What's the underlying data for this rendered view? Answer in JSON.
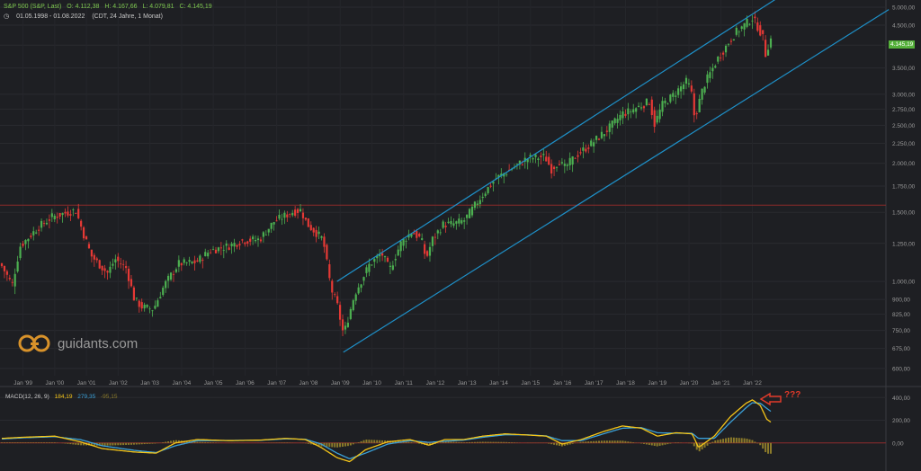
{
  "header": {
    "symbol": "S&P 500 (S&P, Last)",
    "open": "O: 4.112,38",
    "high": "H: 4.167,66",
    "low": "L: 4.079,81",
    "close": "C: 4.145,19",
    "range": "01.05.1998 - 01.08.2022",
    "meta": "(CDT, 24 Jahre, 1 Monat)"
  },
  "last_price_label": "4.145,19",
  "logo_text": "guidants.com",
  "annotation": "???",
  "macd_header": {
    "name": "MACD(12, 26, 9)",
    "macd": "184,19",
    "signal": "279,35",
    "hist": "-95,15"
  },
  "colors": {
    "up": "#4caf50",
    "down": "#e53935",
    "channel": "#1e90c8",
    "macd": "#f5c518",
    "signal": "#3aa0d8",
    "hist": "#8b7a2a",
    "hline": "#8b2a2a",
    "background": "#1e1f23"
  },
  "chart_data": [
    {
      "type": "candlestick",
      "title": "S&P 500 (S&P, Last)",
      "scale": "log",
      "ylim": [
        575,
        5000
      ],
      "y_ticks": [
        "5.000,00",
        "4.500,00",
        "4.000,00",
        "3.500,00",
        "3.000,00",
        "2.750,00",
        "2.500,00",
        "2.250,00",
        "2.000,00",
        "1.750,00",
        "1.500,00",
        "1.250,00",
        "1.000,00",
        "900,00",
        "825,00",
        "750,00",
        "675,00",
        "600,00"
      ],
      "y_tick_values": [
        5000,
        4500,
        4000,
        3500,
        3000,
        2750,
        2500,
        2250,
        2000,
        1750,
        1500,
        1250,
        1000,
        900,
        825,
        750,
        675,
        600
      ],
      "x_ticks": [
        "Jan '99",
        "Jan '00",
        "Jan '01",
        "Jan '02",
        "Jan '03",
        "Jan '04",
        "Jan '05",
        "Jan '06",
        "Jan '07",
        "Jan '08",
        "Jan '09",
        "Jan '10",
        "Jan '11",
        "Jan '12",
        "Jan '13",
        "Jan '14",
        "Jan '15",
        "Jan '16",
        "Jan '17",
        "Jan '18",
        "Jan '19",
        "Jan '20",
        "Jan '21",
        "Jan '22"
      ],
      "x_tick_years": [
        1999,
        2000,
        2001,
        2002,
        2003,
        2004,
        2005,
        2006,
        2007,
        2008,
        2009,
        2010,
        2011,
        2012,
        2013,
        2014,
        2015,
        2016,
        2017,
        2018,
        2019,
        2020,
        2021,
        2022
      ],
      "x_range": [
        1998.33,
        2022.58
      ],
      "horizontal_line": 1565,
      "last_value": 4145.19,
      "channel": {
        "upper": [
          [
            2008.9,
            1000
          ],
          [
            2022.0,
            4800
          ]
        ],
        "lower": [
          [
            2009.1,
            660
          ],
          [
            2022.6,
            3200
          ]
        ]
      },
      "series_anchors": [
        [
          1998.33,
          1110
        ],
        [
          1998.7,
          980
        ],
        [
          1998.95,
          1230
        ],
        [
          1999.5,
          1370
        ],
        [
          1999.95,
          1460
        ],
        [
          2000.2,
          1480
        ],
        [
          2000.7,
          1520
        ],
        [
          2000.95,
          1320
        ],
        [
          2001.2,
          1160
        ],
        [
          2001.7,
          1050
        ],
        [
          2001.95,
          1140
        ],
        [
          2002.3,
          1080
        ],
        [
          2002.55,
          900
        ],
        [
          2002.8,
          860
        ],
        [
          2003.15,
          850
        ],
        [
          2003.5,
          980
        ],
        [
          2003.95,
          1110
        ],
        [
          2004.5,
          1120
        ],
        [
          2004.95,
          1200
        ],
        [
          2005.5,
          1230
        ],
        [
          2005.95,
          1270
        ],
        [
          2006.5,
          1280
        ],
        [
          2006.95,
          1420
        ],
        [
          2007.5,
          1500
        ],
        [
          2007.8,
          1520
        ],
        [
          2008.0,
          1400
        ],
        [
          2008.5,
          1280
        ],
        [
          2008.75,
          960
        ],
        [
          2008.95,
          870
        ],
        [
          2009.15,
          730
        ],
        [
          2009.5,
          930
        ],
        [
          2009.95,
          1100
        ],
        [
          2010.35,
          1180
        ],
        [
          2010.6,
          1070
        ],
        [
          2010.95,
          1250
        ],
        [
          2011.3,
          1340
        ],
        [
          2011.6,
          1280
        ],
        [
          2011.75,
          1140
        ],
        [
          2011.95,
          1280
        ],
        [
          2012.3,
          1400
        ],
        [
          2012.6,
          1400
        ],
        [
          2012.95,
          1430
        ],
        [
          2013.5,
          1650
        ],
        [
          2013.95,
          1830
        ],
        [
          2014.5,
          1950
        ],
        [
          2014.95,
          2060
        ],
        [
          2015.5,
          2080
        ],
        [
          2015.7,
          1930
        ],
        [
          2015.95,
          2030
        ],
        [
          2016.1,
          1940
        ],
        [
          2016.5,
          2100
        ],
        [
          2016.95,
          2240
        ],
        [
          2017.5,
          2450
        ],
        [
          2017.95,
          2680
        ],
        [
          2018.1,
          2700
        ],
        [
          2018.5,
          2800
        ],
        [
          2018.8,
          2880
        ],
        [
          2018.95,
          2510
        ],
        [
          2019.2,
          2820
        ],
        [
          2019.5,
          2960
        ],
        [
          2019.95,
          3230
        ],
        [
          2020.1,
          3100
        ],
        [
          2020.22,
          2600
        ],
        [
          2020.5,
          3150
        ],
        [
          2020.95,
          3700
        ],
        [
          2021.5,
          4300
        ],
        [
          2021.95,
          4620
        ],
        [
          2022.0,
          4750
        ],
        [
          2022.25,
          4400
        ],
        [
          2022.4,
          4120
        ],
        [
          2022.45,
          3790
        ],
        [
          2022.5,
          3850
        ],
        [
          2022.58,
          4145
        ]
      ]
    },
    {
      "type": "line",
      "title": "MACD(12, 26, 9)",
      "ylim": [
        -200,
        450
      ],
      "y_ticks": [
        "400,00",
        "200,00",
        "0,00"
      ],
      "y_tick_values": [
        400,
        200,
        0
      ],
      "zero_line": 0,
      "series": [
        {
          "name": "MACD",
          "values": [
            [
              1998.33,
              40
            ],
            [
              1999,
              50
            ],
            [
              2000,
              60
            ],
            [
              2000.8,
              10
            ],
            [
              2001.5,
              -50
            ],
            [
              2002.5,
              -80
            ],
            [
              2003.2,
              -90
            ],
            [
              2003.8,
              0
            ],
            [
              2004.5,
              30
            ],
            [
              2005.5,
              20
            ],
            [
              2006.5,
              25
            ],
            [
              2007.3,
              40
            ],
            [
              2007.9,
              30
            ],
            [
              2008.4,
              -40
            ],
            [
              2008.9,
              -130
            ],
            [
              2009.3,
              -165
            ],
            [
              2009.8,
              -60
            ],
            [
              2010.5,
              10
            ],
            [
              2011.2,
              30
            ],
            [
              2011.8,
              -20
            ],
            [
              2012.3,
              30
            ],
            [
              2012.9,
              30
            ],
            [
              2013.5,
              60
            ],
            [
              2014.2,
              80
            ],
            [
              2014.9,
              70
            ],
            [
              2015.5,
              60
            ],
            [
              2016.0,
              -10
            ],
            [
              2016.6,
              30
            ],
            [
              2017.3,
              100
            ],
            [
              2017.9,
              150
            ],
            [
              2018.5,
              130
            ],
            [
              2019.0,
              60
            ],
            [
              2019.6,
              90
            ],
            [
              2020.1,
              80
            ],
            [
              2020.3,
              -40
            ],
            [
              2020.8,
              60
            ],
            [
              2021.3,
              230
            ],
            [
              2021.8,
              350
            ],
            [
              2022.0,
              380
            ],
            [
              2022.25,
              330
            ],
            [
              2022.45,
              210
            ],
            [
              2022.58,
              184
            ]
          ]
        },
        {
          "name": "Signal",
          "values": [
            [
              1998.33,
              35
            ],
            [
              1999,
              45
            ],
            [
              2000,
              55
            ],
            [
              2000.8,
              30
            ],
            [
              2001.5,
              -25
            ],
            [
              2002.5,
              -65
            ],
            [
              2003.2,
              -85
            ],
            [
              2003.8,
              -25
            ],
            [
              2004.5,
              20
            ],
            [
              2005.5,
              22
            ],
            [
              2006.5,
              24
            ],
            [
              2007.3,
              36
            ],
            [
              2007.9,
              33
            ],
            [
              2008.4,
              -10
            ],
            [
              2008.9,
              -90
            ],
            [
              2009.3,
              -140
            ],
            [
              2009.8,
              -90
            ],
            [
              2010.5,
              -10
            ],
            [
              2011.2,
              20
            ],
            [
              2011.8,
              5
            ],
            [
              2012.3,
              15
            ],
            [
              2012.9,
              25
            ],
            [
              2013.5,
              50
            ],
            [
              2014.2,
              72
            ],
            [
              2014.9,
              72
            ],
            [
              2015.5,
              62
            ],
            [
              2016.0,
              20
            ],
            [
              2016.6,
              20
            ],
            [
              2017.3,
              80
            ],
            [
              2017.9,
              130
            ],
            [
              2018.5,
              135
            ],
            [
              2019.0,
              90
            ],
            [
              2019.6,
              85
            ],
            [
              2020.1,
              85
            ],
            [
              2020.3,
              40
            ],
            [
              2020.8,
              40
            ],
            [
              2021.3,
              180
            ],
            [
              2021.8,
              310
            ],
            [
              2022.0,
              355
            ],
            [
              2022.25,
              350
            ],
            [
              2022.45,
              305
            ],
            [
              2022.58,
              279
            ]
          ]
        }
      ]
    }
  ]
}
